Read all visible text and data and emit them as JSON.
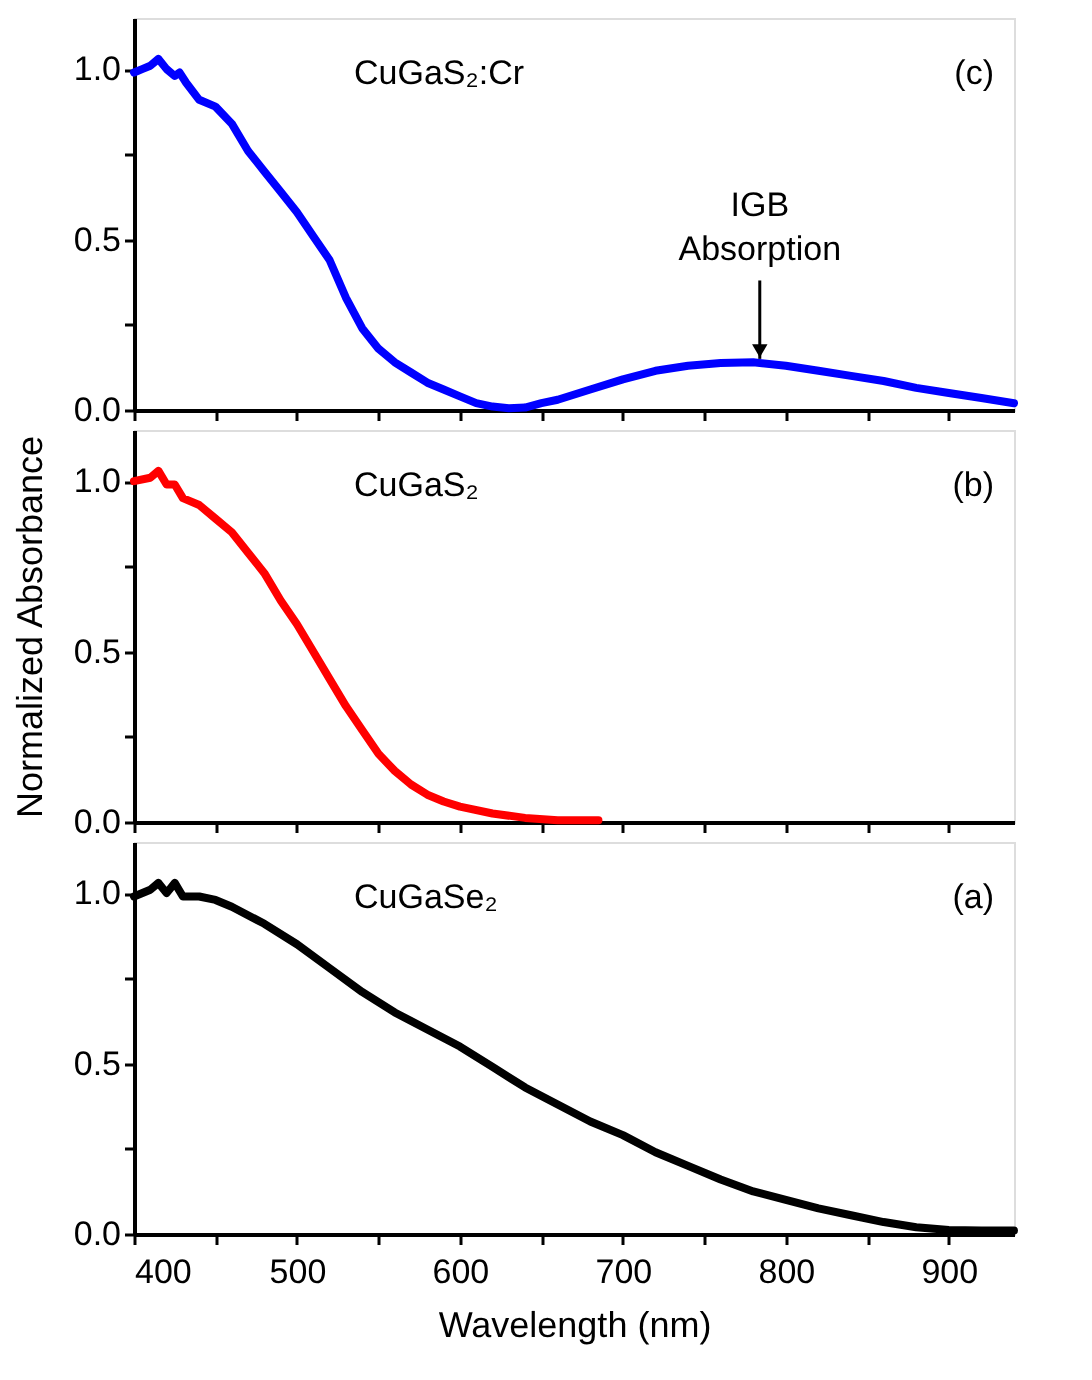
{
  "chart_data": [
    {
      "type": "line",
      "tick_labels": "y",
      "grid": false,
      "marker": "none",
      "line_style": "solid",
      "xlim": [
        400,
        940
      ],
      "ylim": [
        0,
        1.15
      ],
      "xticks": [
        400,
        {
          "value": 450,
          "label": null
        },
        500,
        {
          "value": 550,
          "label": null
        },
        600,
        {
          "value": 650,
          "label": null
        },
        700,
        {
          "value": 750,
          "label": null
        },
        800,
        {
          "value": 850,
          "label": null
        },
        900
      ],
      "yticks": [
        {
          "value": 0,
          "label": "0.0"
        },
        {
          "value": 0.25,
          "label": null
        },
        {
          "value": 0.5,
          "label": "0.5"
        },
        {
          "value": 0.75,
          "label": null
        },
        {
          "value": 1,
          "label": "1.0"
        }
      ],
      "annotations": [
        "CuGaS₂:Cr",
        "(c)",
        {
          "text": "IGB Absorption",
          "x": 784,
          "y": 0.15
        }
      ],
      "x": [
        400,
        405,
        410,
        415,
        420,
        425,
        428,
        432,
        440,
        450,
        460,
        470,
        480,
        490,
        500,
        510,
        520,
        530,
        540,
        550,
        560,
        570,
        580,
        590,
        600,
        610,
        620,
        630,
        640,
        650,
        660,
        680,
        700,
        720,
        740,
        760,
        780,
        800,
        820,
        840,
        860,
        880,
        900,
        920,
        940
      ],
      "series": [
        {
          "color": "#0000ff",
          "values": [
            0.99,
            1.0,
            1.01,
            1.03,
            1.0,
            0.98,
            0.99,
            0.96,
            0.91,
            0.89,
            0.84,
            0.76,
            0.7,
            0.64,
            0.58,
            0.51,
            0.44,
            0.33,
            0.24,
            0.18,
            0.14,
            0.11,
            0.08,
            0.06,
            0.04,
            0.02,
            0.01,
            0.005,
            0.007,
            0.02,
            0.03,
            0.06,
            0.09,
            0.115,
            0.13,
            0.138,
            0.14,
            0.13,
            0.115,
            0.1,
            0.085,
            0.065,
            0.05,
            0.035,
            0.02
          ]
        }
      ]
    },
    {
      "type": "line",
      "tick_labels": "y",
      "grid": false,
      "marker": "none",
      "line_style": "solid",
      "ylabel": "Normalized Absorbance",
      "xlim": [
        400,
        940
      ],
      "ylim": [
        0,
        1.15
      ],
      "xticks": [
        400,
        {
          "value": 450,
          "label": null
        },
        500,
        {
          "value": 550,
          "label": null
        },
        600,
        {
          "value": 650,
          "label": null
        },
        700,
        {
          "value": 750,
          "label": null
        },
        800,
        {
          "value": 850,
          "label": null
        },
        900
      ],
      "yticks": [
        {
          "value": 0,
          "label": "0.0"
        },
        {
          "value": 0.25,
          "label": null
        },
        {
          "value": 0.5,
          "label": "0.5"
        },
        {
          "value": 0.75,
          "label": null
        },
        {
          "value": 1,
          "label": "1.0"
        }
      ],
      "annotations": [
        "CuGaS₂",
        "(b)"
      ],
      "x": [
        400,
        410,
        415,
        420,
        425,
        430,
        440,
        450,
        460,
        470,
        480,
        490,
        500,
        510,
        520,
        530,
        540,
        550,
        560,
        570,
        580,
        590,
        600,
        620,
        640,
        660,
        685
      ],
      "series": [
        {
          "color": "#ff0000",
          "values": [
            1.0,
            1.01,
            1.03,
            0.99,
            0.99,
            0.95,
            0.93,
            0.89,
            0.85,
            0.79,
            0.73,
            0.65,
            0.58,
            0.5,
            0.42,
            0.34,
            0.27,
            0.2,
            0.15,
            0.11,
            0.08,
            0.06,
            0.045,
            0.025,
            0.012,
            0.005,
            0.005
          ]
        }
      ]
    },
    {
      "type": "line",
      "grid": false,
      "marker": "none",
      "line_style": "solid",
      "xlabel": "Wavelength (nm)",
      "xlim": [
        400,
        940
      ],
      "ylim": [
        0,
        1.15
      ],
      "xticks": [
        400,
        {
          "value": 450,
          "label": null
        },
        500,
        {
          "value": 550,
          "label": null
        },
        600,
        {
          "value": 650,
          "label": null
        },
        700,
        {
          "value": 750,
          "label": null
        },
        800,
        {
          "value": 850,
          "label": null
        },
        900
      ],
      "yticks": [
        {
          "value": 0,
          "label": "0.0"
        },
        {
          "value": 0.25,
          "label": null
        },
        {
          "value": 0.5,
          "label": "0.5"
        },
        {
          "value": 0.75,
          "label": null
        },
        {
          "value": 1,
          "label": "1.0"
        }
      ],
      "annotations": [
        "CuGaSe₂",
        "(a)"
      ],
      "x": [
        400,
        410,
        415,
        420,
        425,
        430,
        440,
        450,
        460,
        480,
        500,
        520,
        540,
        560,
        580,
        600,
        620,
        640,
        660,
        680,
        700,
        720,
        740,
        760,
        780,
        800,
        820,
        840,
        860,
        880,
        900,
        920,
        940
      ],
      "series": [
        {
          "color": "#000000",
          "values": [
            0.99,
            1.01,
            1.03,
            1.0,
            1.03,
            0.99,
            0.99,
            0.98,
            0.96,
            0.91,
            0.85,
            0.78,
            0.71,
            0.65,
            0.6,
            0.55,
            0.49,
            0.43,
            0.38,
            0.33,
            0.29,
            0.24,
            0.2,
            0.16,
            0.125,
            0.1,
            0.075,
            0.055,
            0.035,
            0.02,
            0.012,
            0.01,
            0.01
          ]
        }
      ]
    }
  ]
}
